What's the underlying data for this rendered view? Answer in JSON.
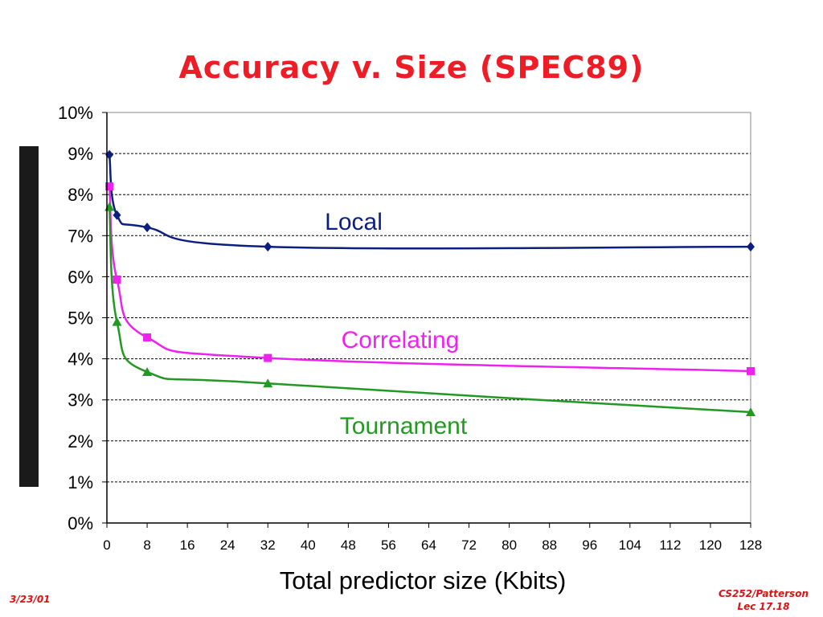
{
  "slide": {
    "title": "Accuracy v. Size (SPEC89)",
    "date": "3/23/01",
    "course": "CS252/Patterson",
    "lecture": "Lec 17.18"
  },
  "colors": {
    "title": "#ee1c25",
    "footer": "#dd1111",
    "local": "#0c1e7e",
    "correlating": "#ee22ee",
    "tournament": "#229922",
    "ylabel_box": "#1a1a1a",
    "axis": "#000000",
    "grid": "#000000"
  },
  "chart_data": {
    "type": "line",
    "title": "Accuracy v. Size (SPEC89)",
    "xlabel": "Total predictor size (Kbits)",
    "ylabel": "",
    "xlim": [
      0,
      128
    ],
    "ylim": [
      0,
      10
    ],
    "x_ticks": [
      "0",
      "8",
      "16",
      "24",
      "32",
      "40",
      "48",
      "56",
      "64",
      "72",
      "80",
      "88",
      "96",
      "104",
      "112",
      "120",
      "128"
    ],
    "y_ticks": [
      "0%",
      "1%",
      "2%",
      "3%",
      "4%",
      "5%",
      "6%",
      "7%",
      "8%",
      "9%",
      "10%"
    ],
    "grid": "horizontal dashed",
    "x": [
      0.5,
      2,
      8,
      32,
      128
    ],
    "series": [
      {
        "name": "Local",
        "marker": "diamond",
        "color_key": "local",
        "values": [
          8.97,
          7.5,
          7.2,
          6.73,
          6.73
        ]
      },
      {
        "name": "Correlating",
        "marker": "square",
        "color_key": "correlating",
        "values": [
          8.2,
          5.93,
          4.52,
          4.02,
          3.7
        ]
      },
      {
        "name": "Tournament",
        "marker": "triangle",
        "color_key": "tournament",
        "values": [
          7.7,
          4.9,
          3.68,
          3.4,
          2.7
        ]
      }
    ]
  }
}
